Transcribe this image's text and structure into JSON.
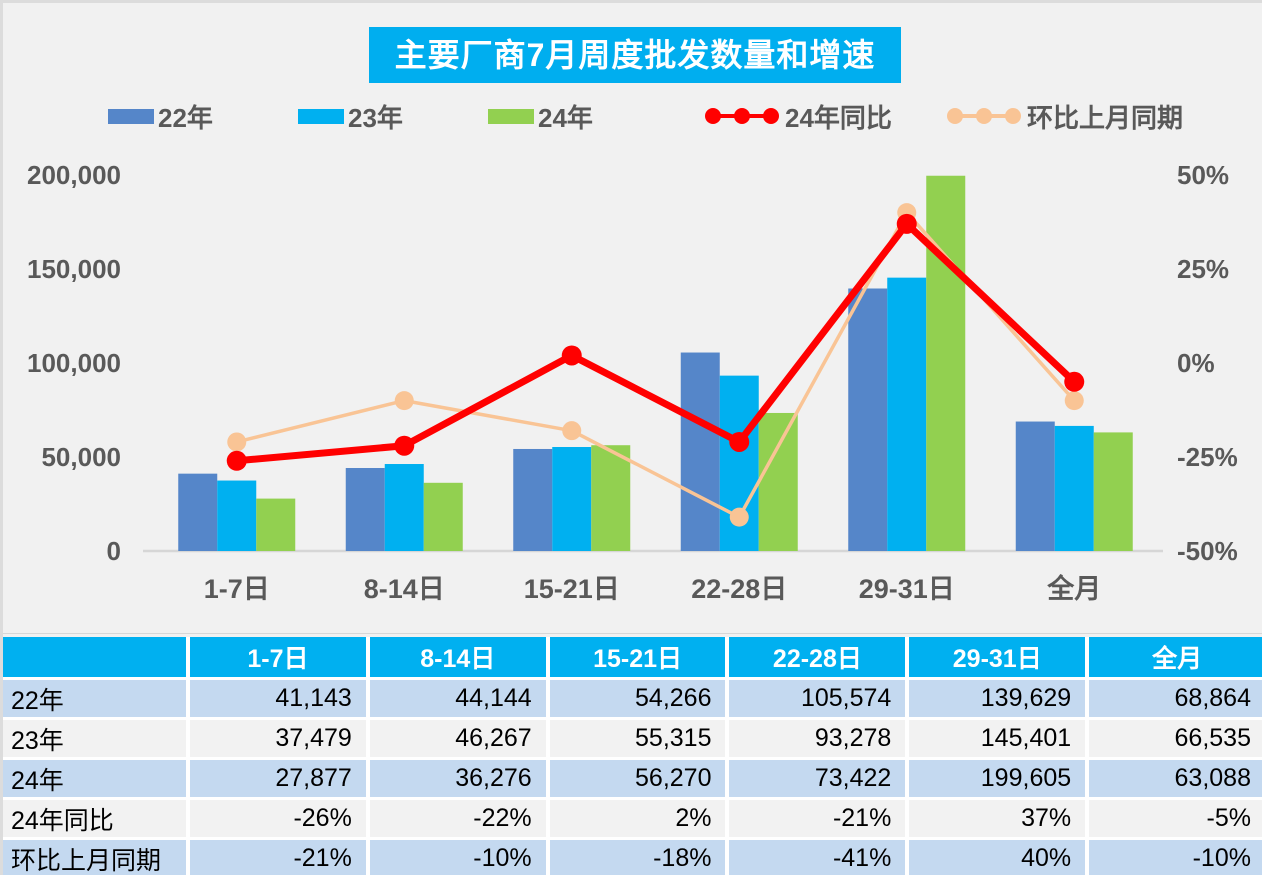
{
  "title": "主要厂商7月周度批发数量和增速",
  "colors": {
    "title_bg": "#00AEEF",
    "bar_22": "#5586C9",
    "bar_23": "#00B0F0",
    "bar_24": "#92D050",
    "line_yoy": "#FF0000",
    "line_mom": "#F9C495",
    "axis_text": "#595959",
    "baseline": "#D6D6D6",
    "table_header_bg": "#00B0F0",
    "row_alt_bg": "#C4D9F0",
    "row_plain_bg": "#F2F2F2",
    "page_bg": "#F1F1F1"
  },
  "legend": {
    "items": [
      {
        "label": "22年",
        "type": "bar",
        "color_key": "bar_22"
      },
      {
        "label": "23年",
        "type": "bar",
        "color_key": "bar_23"
      },
      {
        "label": "24年",
        "type": "bar",
        "color_key": "bar_24"
      },
      {
        "label": "24年同比",
        "type": "line",
        "color_key": "line_yoy"
      },
      {
        "label": "环比上月同期",
        "type": "line",
        "color_key": "line_mom"
      }
    ]
  },
  "chart_data": {
    "type": "bar",
    "subtype": "grouped-bar-with-lines-dual-axis",
    "title": "主要厂商7月周度批发数量和增速",
    "categories": [
      "1-7日",
      "8-14日",
      "15-21日",
      "22-28日",
      "29-31日",
      "全月"
    ],
    "series": [
      {
        "name": "22年",
        "kind": "bar",
        "axis": "left",
        "color_key": "bar_22",
        "values": [
          41143,
          44144,
          54266,
          105574,
          139629,
          68864
        ]
      },
      {
        "name": "23年",
        "kind": "bar",
        "axis": "left",
        "color_key": "bar_23",
        "values": [
          37479,
          46267,
          55315,
          93278,
          145401,
          66535
        ]
      },
      {
        "name": "24年",
        "kind": "bar",
        "axis": "left",
        "color_key": "bar_24",
        "values": [
          27877,
          36276,
          56270,
          73422,
          199605,
          63088
        ]
      },
      {
        "name": "24年同比",
        "kind": "line",
        "axis": "right",
        "color_key": "line_yoy",
        "values": [
          -26,
          -22,
          2,
          -21,
          37,
          -5
        ]
      },
      {
        "name": "环比上月同期",
        "kind": "line",
        "axis": "right",
        "color_key": "line_mom",
        "values": [
          -21,
          -10,
          -18,
          -41,
          40,
          -10
        ]
      }
    ],
    "left_axis": {
      "ticks": [
        "0",
        "50,000",
        "100,000",
        "150,000",
        "200,000"
      ],
      "min": 0,
      "max": 200000
    },
    "right_axis": {
      "ticks": [
        "-50%",
        "-25%",
        "0%",
        "25%",
        "50%"
      ],
      "min": -50,
      "max": 50
    },
    "grid": false,
    "legend_position": "top"
  },
  "table": {
    "header": [
      "",
      "1-7日",
      "8-14日",
      "15-21日",
      "22-28日",
      "29-31日",
      "全月"
    ],
    "rows": [
      {
        "label": "22年",
        "values": [
          "41,143",
          "44,144",
          "54,266",
          "105,574",
          "139,629",
          "68,864"
        ]
      },
      {
        "label": "23年",
        "values": [
          "37,479",
          "46,267",
          "55,315",
          "93,278",
          "145,401",
          "66,535"
        ]
      },
      {
        "label": "24年",
        "values": [
          "27,877",
          "36,276",
          "56,270",
          "73,422",
          "199,605",
          "63,088"
        ]
      },
      {
        "label": "24年同比",
        "values": [
          "-26%",
          "-22%",
          "2%",
          "-21%",
          "37%",
          "-5%"
        ]
      },
      {
        "label": "环比上月同期",
        "values": [
          "-21%",
          "-10%",
          "-18%",
          "-41%",
          "40%",
          "-10%"
        ]
      }
    ]
  }
}
